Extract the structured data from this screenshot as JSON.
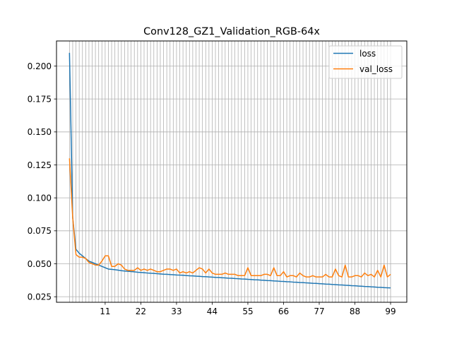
{
  "chart_data": {
    "type": "line",
    "title": "Conv128_GZ1_Validation_RGB-64x",
    "xlabel": "",
    "ylabel": "",
    "xlim": [
      -4,
      104
    ],
    "ylim": [
      0.0208,
      0.219
    ],
    "x_ticks": [
      11,
      22,
      33,
      44,
      55,
      66,
      77,
      88,
      99
    ],
    "y_ticks": [
      0.025,
      0.05,
      0.075,
      0.1,
      0.125,
      0.15,
      0.175,
      0.2
    ],
    "y_tick_labels": [
      "0.025",
      "0.050",
      "0.075",
      "0.100",
      "0.125",
      "0.150",
      "0.175",
      "0.200"
    ],
    "grid": true,
    "vertical_grid_every_epoch": true,
    "legend_position": "top-right",
    "x": [
      0,
      1,
      2,
      3,
      4,
      5,
      6,
      7,
      8,
      9,
      10,
      11,
      12,
      13,
      14,
      15,
      16,
      17,
      18,
      19,
      20,
      21,
      22,
      23,
      24,
      25,
      26,
      27,
      28,
      29,
      30,
      31,
      32,
      33,
      34,
      35,
      36,
      37,
      38,
      39,
      40,
      41,
      42,
      43,
      44,
      45,
      46,
      47,
      48,
      49,
      50,
      51,
      52,
      53,
      54,
      55,
      56,
      57,
      58,
      59,
      60,
      61,
      62,
      63,
      64,
      65,
      66,
      67,
      68,
      69,
      70,
      71,
      72,
      73,
      74,
      75,
      76,
      77,
      78,
      79,
      80,
      81,
      82,
      83,
      84,
      85,
      86,
      87,
      88,
      89,
      90,
      91,
      92,
      93,
      94,
      95,
      96,
      97,
      98,
      99
    ],
    "series": [
      {
        "name": "loss",
        "color": "#1f77b4",
        "values": [
          0.21,
          0.085,
          0.061,
          0.058,
          0.056,
          0.054,
          0.052,
          0.051,
          0.05,
          0.049,
          0.048,
          0.047,
          0.046,
          0.0458,
          0.0455,
          0.0452,
          0.0448,
          0.0445,
          0.0443,
          0.0441,
          0.0439,
          0.0436,
          0.0434,
          0.0432,
          0.043,
          0.0428,
          0.0427,
          0.0425,
          0.0423,
          0.0421,
          0.042,
          0.0418,
          0.0417,
          0.0415,
          0.0414,
          0.0413,
          0.0411,
          0.0409,
          0.0408,
          0.0406,
          0.0405,
          0.0403,
          0.0402,
          0.04,
          0.0399,
          0.0397,
          0.0396,
          0.0394,
          0.0393,
          0.0391,
          0.039,
          0.0388,
          0.0387,
          0.0385,
          0.0384,
          0.0382,
          0.0381,
          0.0379,
          0.0378,
          0.0376,
          0.0375,
          0.0373,
          0.0372,
          0.037,
          0.0369,
          0.0367,
          0.0366,
          0.0364,
          0.0363,
          0.0361,
          0.036,
          0.0358,
          0.0357,
          0.0355,
          0.0354,
          0.0352,
          0.0351,
          0.0349,
          0.0348,
          0.0346,
          0.0345,
          0.0343,
          0.0342,
          0.034,
          0.0339,
          0.0337,
          0.0336,
          0.0334,
          0.0333,
          0.0331,
          0.033,
          0.0328,
          0.0327,
          0.0325,
          0.0324,
          0.0322,
          0.0321,
          0.0319,
          0.0318,
          0.0317
        ]
      },
      {
        "name": "val_loss",
        "color": "#ff7f0e",
        "values": [
          0.13,
          0.085,
          0.057,
          0.055,
          0.055,
          0.054,
          0.051,
          0.05,
          0.049,
          0.049,
          0.052,
          0.056,
          0.056,
          0.048,
          0.048,
          0.05,
          0.049,
          0.046,
          0.045,
          0.045,
          0.045,
          0.047,
          0.045,
          0.046,
          0.045,
          0.046,
          0.045,
          0.044,
          0.044,
          0.045,
          0.046,
          0.046,
          0.045,
          0.046,
          0.043,
          0.044,
          0.043,
          0.044,
          0.043,
          0.045,
          0.047,
          0.046,
          0.043,
          0.046,
          0.043,
          0.042,
          0.042,
          0.042,
          0.043,
          0.042,
          0.042,
          0.042,
          0.041,
          0.041,
          0.041,
          0.047,
          0.041,
          0.041,
          0.041,
          0.041,
          0.042,
          0.042,
          0.041,
          0.047,
          0.041,
          0.041,
          0.044,
          0.04,
          0.041,
          0.041,
          0.04,
          0.043,
          0.041,
          0.04,
          0.04,
          0.041,
          0.04,
          0.04,
          0.04,
          0.042,
          0.04,
          0.04,
          0.046,
          0.041,
          0.04,
          0.049,
          0.04,
          0.04,
          0.041,
          0.041,
          0.04,
          0.043,
          0.041,
          0.042,
          0.04,
          0.045,
          0.04,
          0.049,
          0.04,
          0.042
        ]
      }
    ]
  }
}
